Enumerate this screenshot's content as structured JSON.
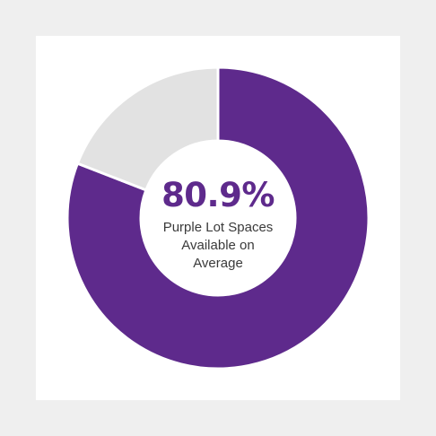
{
  "chart_data": {
    "type": "pie",
    "style": "donut",
    "slices": [
      {
        "value": 80.9,
        "color": "#5e2a8c"
      },
      {
        "value": 19.1,
        "color": "#e2e2e2"
      }
    ],
    "center_value": "80.9%",
    "center_label_lines": [
      "Purple Lot Spaces",
      "Available on",
      "Average"
    ],
    "legend": "none"
  },
  "colors": {
    "accent": "#5e2a8c",
    "remainder": "#e2e2e2",
    "separator": "#ffffff",
    "card": "#ffffff",
    "page": "#efefef"
  }
}
